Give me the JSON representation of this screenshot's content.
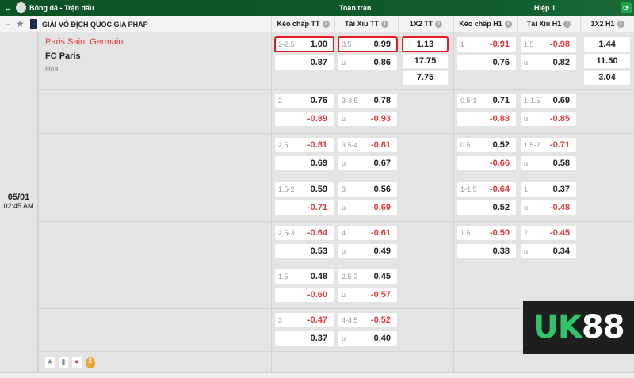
{
  "topbar": {
    "title": "Bóng đá - Trận đấu",
    "full_match": "Toàn trận",
    "half1": "Hiệp 1"
  },
  "league": {
    "name": "GIẢI VÔ ĐỊCH QUỐC GIA PHÁP"
  },
  "columns": [
    "Kèo chấp TT",
    "Tài Xỉu TT",
    "1X2 TT",
    "Kèo chấp H1",
    "Tài Xỉu H1",
    "1X2 H1"
  ],
  "match": {
    "home": "Paris Saint Germain",
    "away": "FC Paris",
    "draw": "Hòa",
    "date": "05/01",
    "time": "02:45 AM"
  },
  "colors": {
    "header_green": "#0f5a2a",
    "negative": "#e23a3a",
    "highlight": "#e01b24"
  },
  "logo": {
    "text": "UK88"
  },
  "rows": [
    {
      "hc": [
        "2-2.5",
        "1.00",
        "",
        "0.87"
      ],
      "ou": [
        "3.5",
        "0.99",
        "u",
        "0.86"
      ],
      "x12": [
        "1.13",
        "17.75",
        "7.75"
      ],
      "hc1": [
        "1",
        "-0.91",
        "",
        "0.76"
      ],
      "ou1": [
        "1.5",
        "-0.98",
        "u",
        "0.82"
      ],
      "x121": [
        "1.44",
        "11.50",
        "3.04"
      ]
    },
    {
      "hc": [
        "2",
        "0.76",
        "",
        "-0.89"
      ],
      "ou": [
        "3-3.5",
        "0.78",
        "u",
        "-0.93"
      ],
      "hc1": [
        "0.5-1",
        "0.71",
        "",
        "-0.88"
      ],
      "ou1": [
        "1-1.5",
        "0.69",
        "u",
        "-0.85"
      ]
    },
    {
      "hc": [
        "2.5",
        "-0.81",
        "",
        "0.69"
      ],
      "ou": [
        "3.5-4",
        "-0.81",
        "u",
        "0.67"
      ],
      "hc1": [
        "0.5",
        "0.52",
        "",
        "-0.66"
      ],
      "ou1": [
        "1.5-2",
        "-0.71",
        "u",
        "0.58"
      ]
    },
    {
      "hc": [
        "1.5-2",
        "0.59",
        "",
        "-0.71"
      ],
      "ou": [
        "3",
        "0.56",
        "u",
        "-0.69"
      ],
      "hc1": [
        "1-1.5",
        "-0.64",
        "",
        "0.52"
      ],
      "ou1": [
        "1",
        "0.37",
        "u",
        "-0.48"
      ]
    },
    {
      "hc": [
        "2.5-3",
        "-0.64",
        "",
        "0.53"
      ],
      "ou": [
        "4",
        "-0.61",
        "u",
        "0.49"
      ],
      "hc1": [
        "1.5",
        "-0.50",
        "",
        "0.38"
      ],
      "ou1": [
        "2",
        "-0.45",
        "u",
        "0.34"
      ]
    },
    {
      "hc": [
        "1.5",
        "0.48",
        "",
        "-0.60"
      ],
      "ou": [
        "2.5-3",
        "0.45",
        "u",
        "-0.57"
      ]
    },
    {
      "hc": [
        "3",
        "-0.47",
        "",
        "0.37"
      ],
      "ou": [
        "4-4.5",
        "-0.52",
        "u",
        "0.40"
      ]
    }
  ]
}
